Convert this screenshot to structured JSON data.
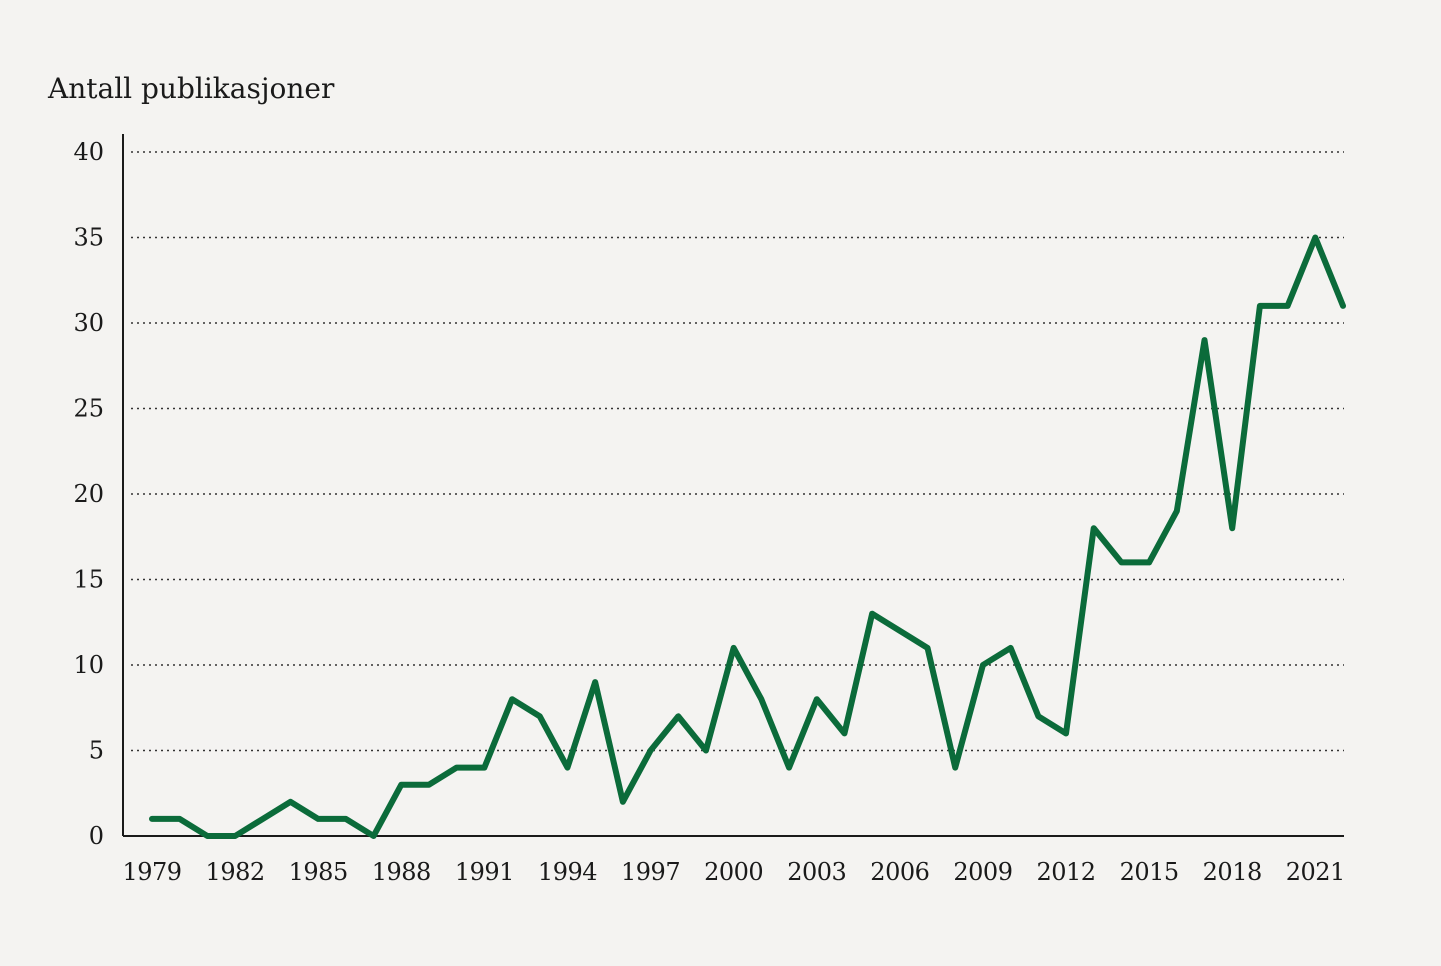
{
  "chart_data": {
    "type": "line",
    "title": "",
    "ylabel": "Antall publikasjoner",
    "xlabel": "",
    "ylim": [
      0,
      40
    ],
    "yticks": [
      0,
      5,
      10,
      15,
      20,
      25,
      30,
      35,
      40
    ],
    "xticks": [
      "1979",
      "1982",
      "1985",
      "1988",
      "1991",
      "1994",
      "1997",
      "2000",
      "2003",
      "2006",
      "2009",
      "2012",
      "2015",
      "2018",
      "2021"
    ],
    "grid": true,
    "legend": "none",
    "line_color": "#0b6b3a",
    "x": [
      1979,
      1980,
      1981,
      1982,
      1983,
      1984,
      1985,
      1986,
      1987,
      1988,
      1989,
      1990,
      1991,
      1992,
      1993,
      1994,
      1995,
      1996,
      1997,
      1998,
      1999,
      2000,
      2001,
      2002,
      2003,
      2004,
      2005,
      2006,
      2007,
      2008,
      2009,
      2010,
      2011,
      2012,
      2013,
      2014,
      2015,
      2016,
      2017,
      2018,
      2019,
      2020,
      2021,
      2022
    ],
    "series": [
      {
        "values": [
          1,
          1,
          0,
          0,
          1,
          2,
          1,
          1,
          0,
          3,
          3,
          4,
          4,
          8,
          7,
          4,
          9,
          2,
          5,
          7,
          5,
          11,
          8,
          4,
          8,
          6,
          13,
          12,
          11,
          4,
          10,
          11,
          7,
          6,
          18,
          16,
          16,
          19,
          29,
          18,
          31,
          31,
          35,
          31
        ]
      }
    ]
  }
}
